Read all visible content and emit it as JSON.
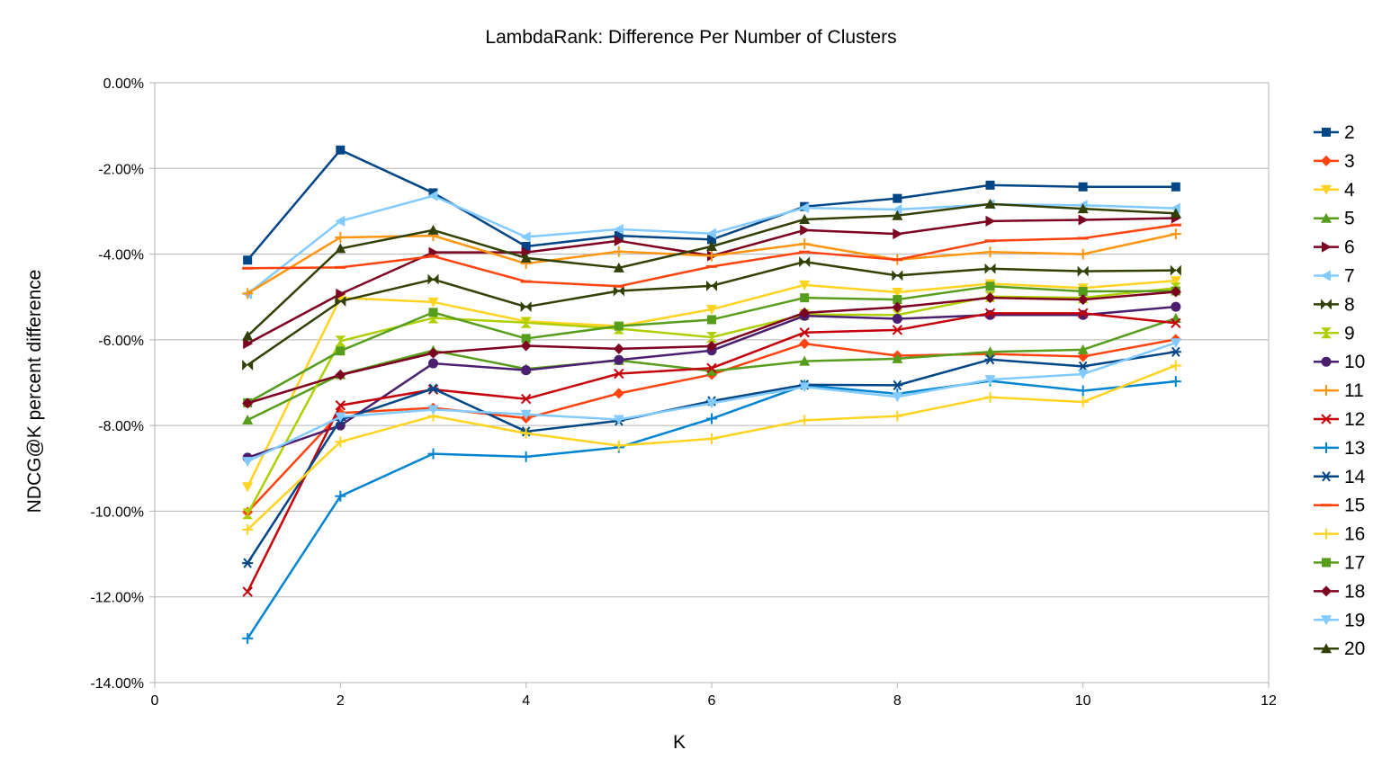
{
  "chart_data": {
    "type": "line",
    "title": "LambdaRank: Difference Per Number of Clusters",
    "xlabel": "K",
    "ylabel": "NDCG@K percent difference",
    "xlim": [
      0,
      12
    ],
    "ylim": [
      -14,
      0
    ],
    "x_ticks": [
      0,
      2,
      4,
      6,
      8,
      10,
      12
    ],
    "y_ticks": [
      0,
      -2,
      -4,
      -6,
      -8,
      -10,
      -12,
      -14
    ],
    "y_tick_labels": [
      "0.00%",
      "-2.00%",
      "-4.00%",
      "-6.00%",
      "-8.00%",
      "-10.00%",
      "-12.00%",
      "-14.00%"
    ],
    "grid": "horizontal",
    "legend_position": "right",
    "x": [
      1,
      2,
      3,
      4,
      5,
      6,
      7,
      8,
      9,
      10,
      11
    ],
    "series": [
      {
        "name": "2",
        "color": "#004586",
        "marker": "square",
        "values": [
          -4.14,
          -1.57,
          -2.57,
          -3.82,
          -3.57,
          -3.66,
          -2.89,
          -2.7,
          -2.39,
          -2.43,
          -2.43
        ]
      },
      {
        "name": "3",
        "color": "#ff420e",
        "marker": "diamond",
        "values": [
          -10.02,
          -7.71,
          -7.59,
          -7.83,
          -7.25,
          -6.81,
          -6.09,
          -6.37,
          -6.33,
          -6.39,
          -5.99
        ]
      },
      {
        "name": "4",
        "color": "#ffd320",
        "marker": "triangle-down",
        "values": [
          -9.43,
          -5.02,
          -5.12,
          -5.57,
          -5.68,
          -5.29,
          -4.72,
          -4.89,
          -4.69,
          -4.79,
          -4.62
        ]
      },
      {
        "name": "5",
        "color": "#579d1c",
        "marker": "triangle-up",
        "values": [
          -7.87,
          -6.81,
          -6.25,
          -6.68,
          -6.48,
          -6.73,
          -6.5,
          -6.44,
          -6.28,
          -6.23,
          -5.5
        ]
      },
      {
        "name": "6",
        "color": "#7e0021",
        "marker": "triangle-right",
        "values": [
          -6.09,
          -4.93,
          -3.96,
          -3.96,
          -3.69,
          -4.04,
          -3.44,
          -3.53,
          -3.23,
          -3.2,
          -3.16
        ]
      },
      {
        "name": "7",
        "color": "#83caff",
        "marker": "triangle-left",
        "values": [
          -4.93,
          -3.23,
          -2.64,
          -3.6,
          -3.42,
          -3.52,
          -2.92,
          -2.96,
          -2.84,
          -2.86,
          -2.93
        ]
      },
      {
        "name": "8",
        "color": "#314004",
        "marker": "bowtie",
        "values": [
          -6.59,
          -5.1,
          -4.59,
          -5.23,
          -4.86,
          -4.74,
          -4.18,
          -4.5,
          -4.34,
          -4.4,
          -4.38
        ]
      },
      {
        "name": "9",
        "color": "#aecf00",
        "marker": "hourglass",
        "values": [
          -10.06,
          -6.03,
          -5.49,
          -5.6,
          -5.74,
          -5.94,
          -5.41,
          -5.42,
          -4.99,
          -5.02,
          -4.79
        ]
      },
      {
        "name": "10",
        "color": "#4b1f6f",
        "marker": "circle",
        "values": [
          -8.75,
          -8.0,
          -6.55,
          -6.71,
          -6.47,
          -6.25,
          -5.44,
          -5.51,
          -5.42,
          -5.42,
          -5.23
        ]
      },
      {
        "name": "11",
        "color": "#ff950e",
        "marker": "plus",
        "values": [
          -4.92,
          -3.61,
          -3.57,
          -4.22,
          -3.94,
          -4.04,
          -3.76,
          -4.13,
          -3.95,
          -4.0,
          -3.53
        ]
      },
      {
        "name": "12",
        "color": "#c5000b",
        "marker": "x",
        "values": [
          -11.88,
          -7.53,
          -7.16,
          -7.38,
          -6.79,
          -6.66,
          -5.83,
          -5.77,
          -5.38,
          -5.38,
          -5.61
        ]
      },
      {
        "name": "13",
        "color": "#0084d1",
        "marker": "plus",
        "values": [
          -12.97,
          -9.65,
          -8.66,
          -8.73,
          -8.51,
          -7.84,
          -7.06,
          -7.26,
          -6.96,
          -7.19,
          -6.97
        ]
      },
      {
        "name": "14",
        "color": "#004586",
        "marker": "asterisk",
        "values": [
          -11.21,
          -7.87,
          -7.14,
          -8.14,
          -7.89,
          -7.43,
          -7.05,
          -7.06,
          -6.46,
          -6.62,
          -6.28
        ]
      },
      {
        "name": "15",
        "color": "#ff420e",
        "marker": "dash",
        "values": [
          -4.33,
          -4.31,
          -4.05,
          -4.64,
          -4.75,
          -4.29,
          -3.95,
          -4.13,
          -3.69,
          -3.63,
          -3.32
        ]
      },
      {
        "name": "16",
        "color": "#ffd320",
        "marker": "plus",
        "values": [
          -10.43,
          -8.38,
          -7.78,
          -8.18,
          -8.47,
          -8.31,
          -7.88,
          -7.78,
          -7.34,
          -7.45,
          -6.6
        ]
      },
      {
        "name": "17",
        "color": "#579d1c",
        "marker": "square",
        "values": [
          -7.47,
          -6.26,
          -5.36,
          -5.97,
          -5.68,
          -5.53,
          -5.02,
          -5.06,
          -4.75,
          -4.87,
          -4.86
        ]
      },
      {
        "name": "18",
        "color": "#7e0021",
        "marker": "diamond",
        "values": [
          -7.48,
          -6.82,
          -6.31,
          -6.14,
          -6.21,
          -6.15,
          -5.37,
          -5.24,
          -5.02,
          -5.06,
          -4.88
        ]
      },
      {
        "name": "19",
        "color": "#83caff",
        "marker": "triangle-down",
        "values": [
          -8.84,
          -7.8,
          -7.63,
          -7.74,
          -7.86,
          -7.48,
          -7.1,
          -7.33,
          -6.93,
          -6.8,
          -6.07
        ]
      },
      {
        "name": "20",
        "color": "#314004",
        "marker": "triangle-up",
        "values": [
          -5.91,
          -3.87,
          -3.44,
          -4.09,
          -4.32,
          -3.82,
          -3.19,
          -3.1,
          -2.83,
          -2.94,
          -3.05
        ]
      }
    ]
  }
}
